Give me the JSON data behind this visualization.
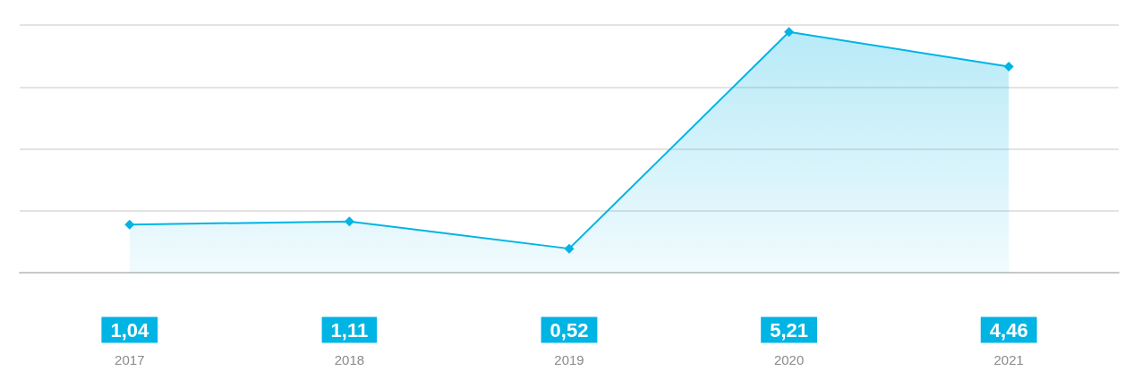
{
  "chart_data": {
    "type": "area",
    "categories": [
      "2017",
      "2018",
      "2019",
      "2020",
      "2021"
    ],
    "series": [
      {
        "color": "#00b4e4",
        "values": [
          1.04,
          1.11,
          0.52,
          5.21,
          4.46
        ],
        "value_labels": [
          "1,04",
          "1,11",
          "0,52",
          "5,21",
          "4,46"
        ]
      }
    ],
    "ylim": [
      0,
      5.36
    ],
    "yticks": [
      {
        "value": 0,
        "label": null
      },
      {
        "value": 1.34,
        "label": null
      },
      {
        "value": 2.68,
        "label": null
      },
      {
        "value": 4.02,
        "label": null
      },
      {
        "value": 5.36,
        "label": null
      }
    ],
    "grid": "y",
    "marker": "diamond",
    "line_style": "solid"
  }
}
